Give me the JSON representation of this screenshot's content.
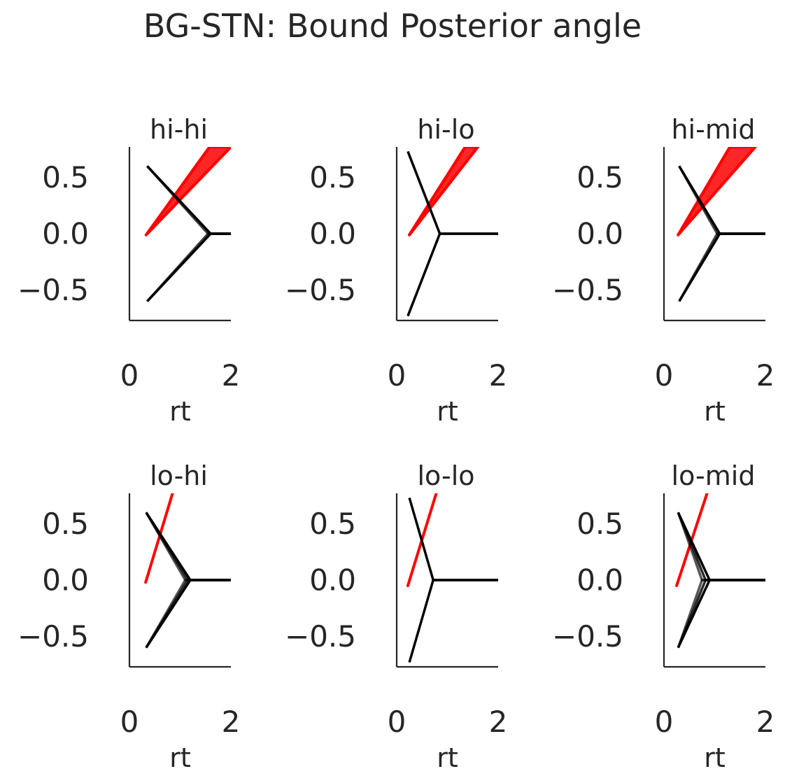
{
  "chart_data": {
    "type": "line",
    "title": "BG-STN: Bound Posterior angle",
    "xlim": [
      0,
      2
    ],
    "ylim": [
      -0.77,
      0.77
    ],
    "xticks": [
      0,
      2
    ],
    "yticks": [
      0.5,
      0.0,
      -0.5
    ],
    "xtick_labels": [
      "0",
      "2"
    ],
    "ytick_labels": [
      "0.5",
      "0.0",
      "−0.5"
    ],
    "xlabel": "rt",
    "ylabel": "",
    "grid": false,
    "colors": {
      "bound": "#000000",
      "trajectory": "#ff0000",
      "axis": "#262626"
    },
    "panels": [
      {
        "title": "hi-hi",
        "bound_start": {
          "x": 0.35,
          "y": 0.6
        },
        "bound_apex": [
          {
            "x": 1.55,
            "y": 0.0
          },
          {
            "x": 1.6,
            "y": 0.0
          }
        ],
        "bound_end": {
          "x": 2.0,
          "y": 0.0
        },
        "trajectory": {
          "start": {
            "x": 0.33,
            "y": -0.01
          },
          "ends": [
            {
              "x": 1.58,
              "y": 0.77
            },
            {
              "x": 2.0,
              "y": 0.77
            }
          ]
        }
      },
      {
        "title": "hi-lo",
        "bound_start": {
          "x": 0.22,
          "y": 0.73
        },
        "bound_apex": [
          {
            "x": 0.85,
            "y": 0.0
          }
        ],
        "bound_end": {
          "x": 2.0,
          "y": 0.0
        },
        "trajectory": {
          "start": {
            "x": 0.25,
            "y": -0.01
          },
          "ends": [
            {
              "x": 1.35,
              "y": 0.77
            },
            {
              "x": 1.6,
              "y": 0.77
            }
          ]
        }
      },
      {
        "title": "hi-mid",
        "bound_start": {
          "x": 0.3,
          "y": 0.6
        },
        "bound_apex": [
          {
            "x": 1.05,
            "y": 0.0
          },
          {
            "x": 1.1,
            "y": 0.0
          }
        ],
        "bound_end": {
          "x": 2.0,
          "y": 0.0
        },
        "trajectory": {
          "start": {
            "x": 0.28,
            "y": -0.01
          },
          "ends": [
            {
              "x": 1.3,
              "y": 0.77
            },
            {
              "x": 1.8,
              "y": 0.77
            }
          ]
        }
      },
      {
        "title": "lo-hi",
        "bound_start": {
          "x": 0.33,
          "y": 0.6
        },
        "bound_apex": [
          {
            "x": 1.1,
            "y": 0.0
          },
          {
            "x": 1.15,
            "y": 0.0
          },
          {
            "x": 1.2,
            "y": 0.0
          }
        ],
        "bound_end": {
          "x": 2.0,
          "y": 0.0
        },
        "trajectory": {
          "start": {
            "x": 0.32,
            "y": -0.02
          },
          "ends": [
            {
              "x": 0.85,
              "y": 0.77
            }
          ]
        }
      },
      {
        "title": "lo-lo",
        "bound_start": {
          "x": 0.25,
          "y": 0.73
        },
        "bound_apex": [
          {
            "x": 0.72,
            "y": 0.0
          }
        ],
        "bound_end": {
          "x": 2.0,
          "y": 0.0
        },
        "trajectory": {
          "start": {
            "x": 0.22,
            "y": -0.05
          },
          "ends": [
            {
              "x": 0.78,
              "y": 0.77
            }
          ]
        }
      },
      {
        "title": "lo-mid",
        "bound_start": {
          "x": 0.28,
          "y": 0.6
        },
        "bound_apex": [
          {
            "x": 0.75,
            "y": 0.0
          },
          {
            "x": 0.82,
            "y": 0.0
          },
          {
            "x": 0.9,
            "y": 0.0
          }
        ],
        "bound_end": {
          "x": 2.0,
          "y": 0.0
        },
        "trajectory": {
          "start": {
            "x": 0.25,
            "y": -0.05
          },
          "ends": [
            {
              "x": 0.85,
              "y": 0.77
            }
          ]
        }
      }
    ]
  }
}
